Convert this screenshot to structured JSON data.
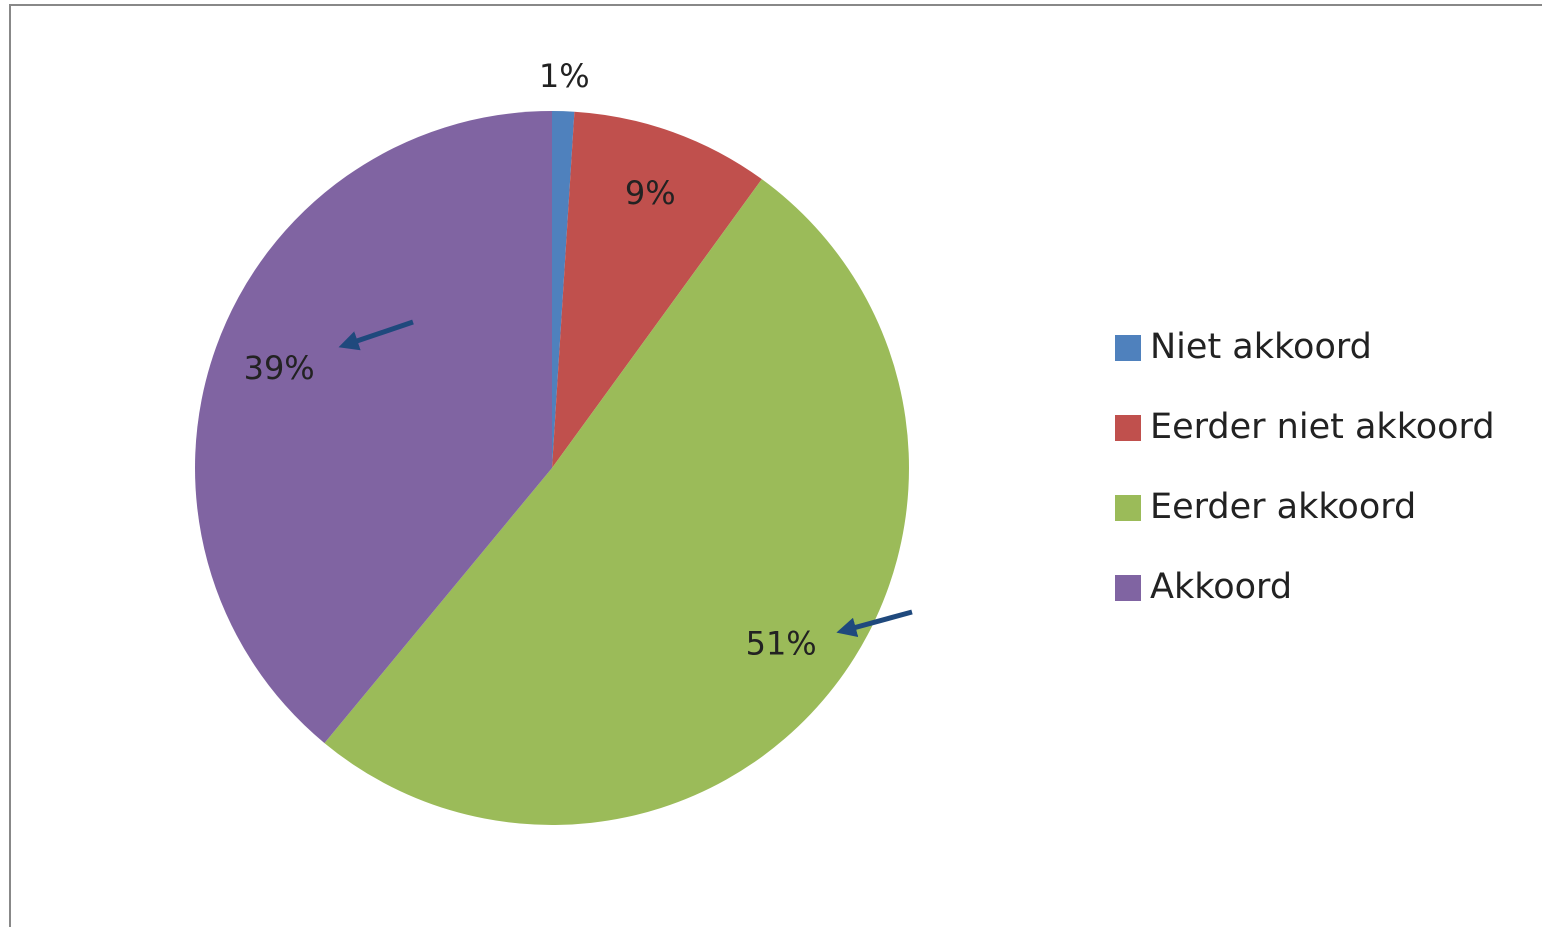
{
  "chart_data": {
    "type": "pie",
    "categories": [
      "Niet akkoord",
      "Eerder niet akkoord",
      "Eerder akkoord",
      "Akkoord"
    ],
    "values": [
      1,
      9,
      51,
      39
    ],
    "value_labels": [
      "1%",
      "9%",
      "51%",
      "39%"
    ],
    "colors": [
      "#4f81bd",
      "#c0504d",
      "#9bbb59",
      "#8064a2"
    ],
    "legend": "right"
  }
}
